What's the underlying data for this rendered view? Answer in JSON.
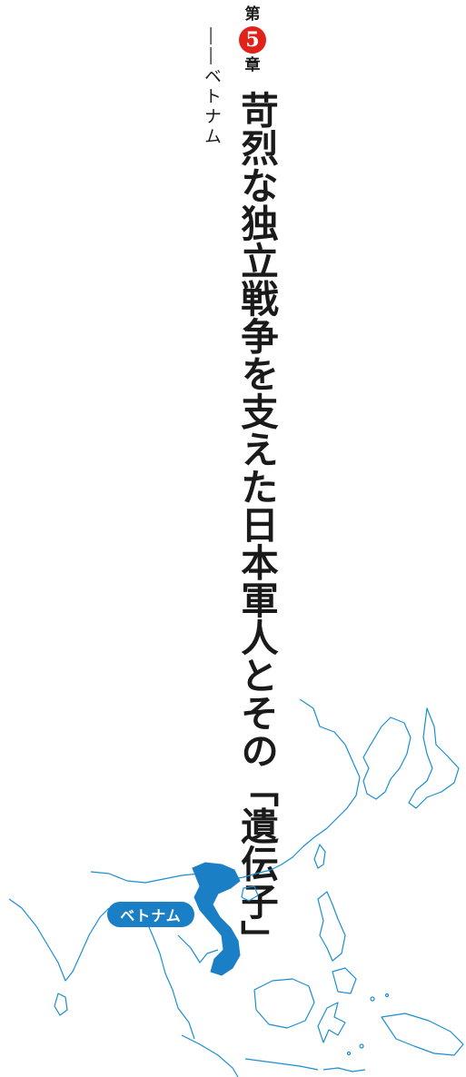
{
  "chapter": {
    "prefix": "第",
    "number": "5",
    "suffix": "章"
  },
  "title": "苛烈な独立戦争を支えた日本軍人とその「遺伝子」",
  "subtitle": "――ベトナム",
  "map": {
    "label": "ベトナム",
    "line_color": "#1a8fd0",
    "highlight_color": "#1a7fc4"
  }
}
